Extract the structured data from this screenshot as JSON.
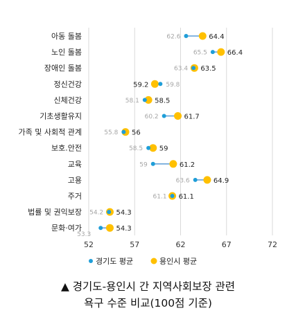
{
  "chart_data": {
    "type": "dumbbell",
    "categories": [
      "아동 돌봄",
      "노인 돌봄",
      "장애인 돌봄",
      "정신건강",
      "신체건강",
      "기초생활유지",
      "가족 및 사회적 관계",
      "보호.안전",
      "교육",
      "고용",
      "주거",
      "법률 및 권익보장",
      "문화·여가"
    ],
    "series": [
      {
        "name": "경기도 평균",
        "color": "#1f9ed8",
        "values": [
          62.6,
          65.5,
          63.4,
          59.8,
          58.1,
          60.2,
          55.8,
          58.5,
          59,
          63.6,
          61.1,
          54.2,
          53.3
        ]
      },
      {
        "name": "용인시 평균",
        "color": "#ffc000",
        "values": [
          64.4,
          66.4,
          63.5,
          59.2,
          58.5,
          61.7,
          56,
          59,
          61.2,
          64.9,
          61.1,
          54.3,
          54.3
        ]
      }
    ],
    "xlim": [
      52,
      72
    ],
    "xticks": [
      "52",
      "57",
      "62",
      "67",
      "72"
    ],
    "grid": "vertical",
    "legend": "bottom"
  },
  "caption": {
    "line1": "▲ 경기도-용인시 간 지역사회보장 관련",
    "line2": "욕구 수준 비교(100점 기준)"
  }
}
